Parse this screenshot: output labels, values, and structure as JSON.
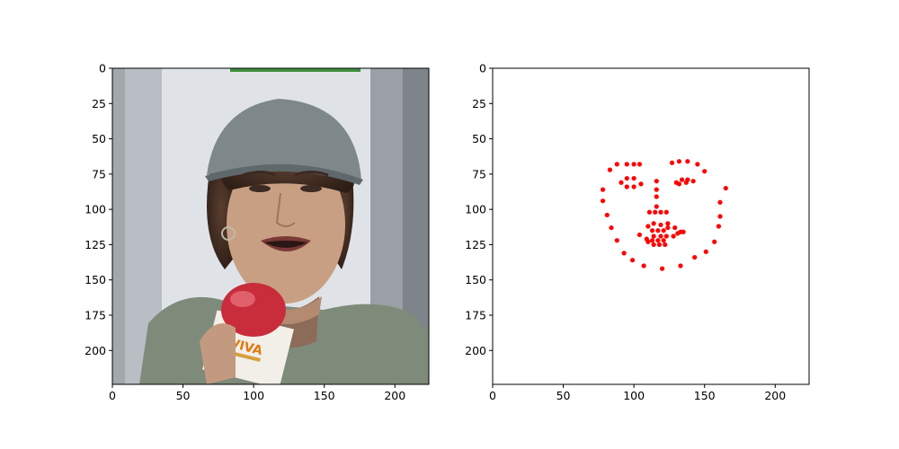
{
  "chart_data": [
    {
      "type": "image",
      "xlim": [
        0,
        224
      ],
      "ylim": [
        224,
        0
      ],
      "x_ticks": [
        0,
        50,
        100,
        150,
        200
      ],
      "y_ticks": [
        0,
        25,
        50,
        75,
        100,
        125,
        150,
        175,
        200
      ],
      "grid": false,
      "image_content": {
        "subject": "woman in grey cap holding microphone",
        "microphone_logo_text": "VIVA"
      }
    },
    {
      "type": "scatter",
      "xlim": [
        0,
        224
      ],
      "ylim": [
        224,
        0
      ],
      "x_ticks": [
        0,
        50,
        100,
        150,
        200
      ],
      "y_ticks": [
        0,
        25,
        50,
        75,
        100,
        125,
        150,
        175,
        200
      ],
      "grid": false,
      "marker_color": "#ff0000",
      "points": [
        [
          78,
          86
        ],
        [
          78,
          94
        ],
        [
          81,
          104
        ],
        [
          84,
          113
        ],
        [
          88,
          122
        ],
        [
          93,
          131
        ],
        [
          99,
          136
        ],
        [
          107,
          140
        ],
        [
          120,
          142
        ],
        [
          133,
          140
        ],
        [
          143,
          134
        ],
        [
          151,
          130
        ],
        [
          157,
          123
        ],
        [
          160,
          112
        ],
        [
          161,
          105
        ],
        [
          161,
          95
        ],
        [
          165,
          85
        ],
        [
          83,
          72
        ],
        [
          88,
          68
        ],
        [
          95,
          68
        ],
        [
          100,
          68
        ],
        [
          104,
          68
        ],
        [
          127,
          67
        ],
        [
          132,
          66
        ],
        [
          138,
          66
        ],
        [
          145,
          68
        ],
        [
          150,
          73
        ],
        [
          116,
          80
        ],
        [
          116,
          86
        ],
        [
          116,
          91
        ],
        [
          116,
          98
        ],
        [
          110,
          112
        ],
        [
          113,
          115
        ],
        [
          117,
          115
        ],
        [
          121,
          115
        ],
        [
          124,
          113
        ],
        [
          91,
          81
        ],
        [
          95,
          78
        ],
        [
          100,
          78
        ],
        [
          105,
          82
        ],
        [
          100,
          84
        ],
        [
          95,
          84
        ],
        [
          130,
          81
        ],
        [
          134,
          79
        ],
        [
          138,
          79
        ],
        [
          142,
          80
        ],
        [
          137,
          81
        ],
        [
          132,
          82
        ],
        [
          104,
          118
        ],
        [
          109,
          121
        ],
        [
          114,
          119
        ],
        [
          119,
          119
        ],
        [
          123,
          119
        ],
        [
          128,
          119
        ],
        [
          133,
          116
        ],
        [
          129,
          113
        ],
        [
          124,
          110
        ],
        [
          119,
          111
        ],
        [
          114,
          110
        ],
        [
          111,
          102
        ],
        [
          115,
          102
        ],
        [
          119,
          102
        ],
        [
          123,
          102
        ],
        [
          135,
          116
        ],
        [
          131,
          117
        ],
        [
          121,
          122
        ],
        [
          117,
          122
        ],
        [
          113,
          122
        ],
        [
          110,
          123
        ],
        [
          114,
          125
        ],
        [
          118,
          125
        ],
        [
          122,
          125
        ]
      ]
    }
  ]
}
